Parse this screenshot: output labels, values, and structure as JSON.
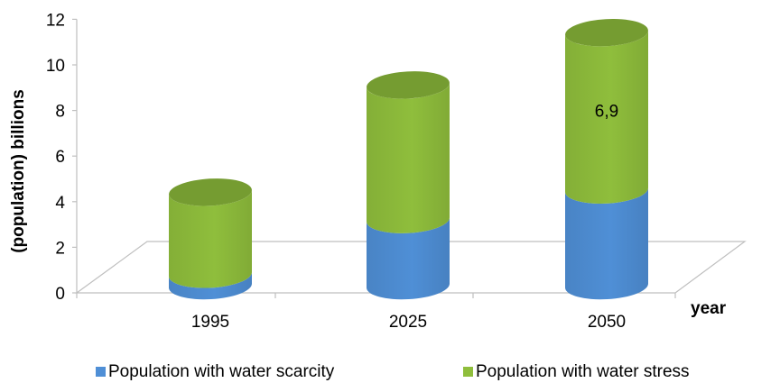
{
  "chart_data": {
    "type": "bar",
    "stacked": true,
    "style": "3d-cylinder",
    "categories": [
      "1995",
      "2025",
      "2050"
    ],
    "series": [
      {
        "name": "Population with water scarcity",
        "color": "#4f8fd6",
        "values": [
          0.5,
          2.9,
          4.2
        ]
      },
      {
        "name": "Population with water stress",
        "color": "#8fbe3c",
        "values": [
          3.6,
          5.9,
          6.9
        ]
      }
    ],
    "data_labels": [
      {
        "series": 1,
        "category": 2,
        "text": "6,9"
      }
    ],
    "ylabel": "(population) billions",
    "xlabel": "year",
    "ylim": [
      0,
      12
    ],
    "yticks": [
      0,
      2,
      4,
      6,
      8,
      10,
      12
    ],
    "legend_position": "bottom",
    "grid": false
  }
}
